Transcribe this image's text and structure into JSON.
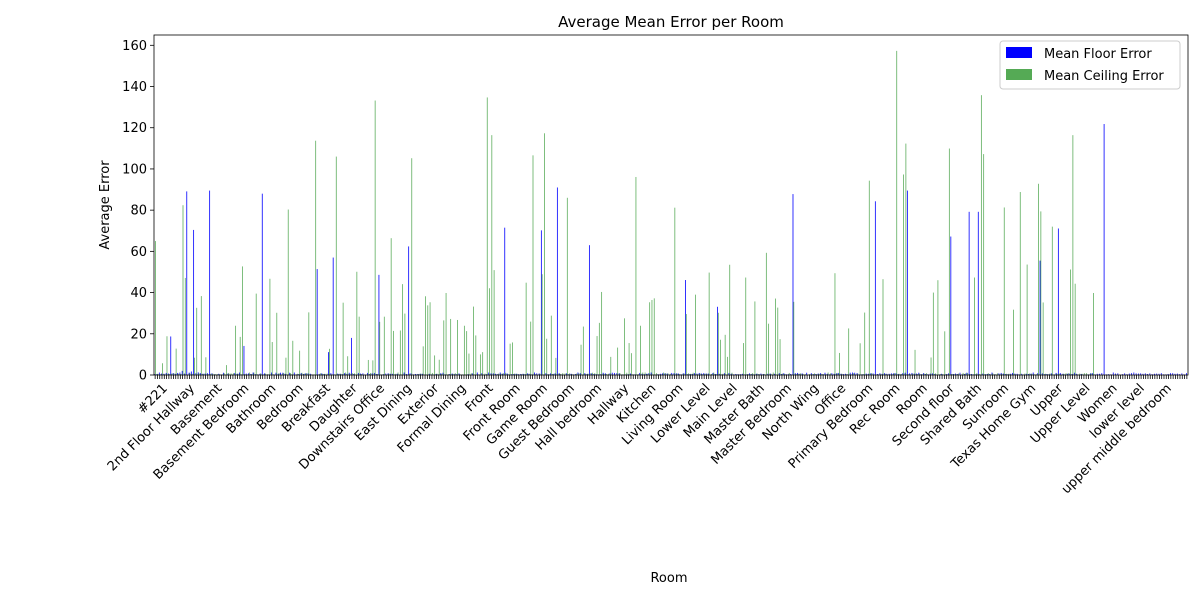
{
  "chart_data": {
    "type": "bar",
    "title": "Average Mean Error per Room",
    "xlabel": "Room",
    "ylabel": "Average Error",
    "ylim": [
      0,
      165
    ],
    "yticks": [
      0,
      20,
      40,
      60,
      80,
      100,
      120,
      140,
      160
    ],
    "grid": false,
    "legend_position": "top-right",
    "visible_categories": [
      "#221",
      "2nd Floor Hallway",
      "Basement",
      "Basement Bedroom",
      "Bathroom",
      "Bedroom",
      "Breakfast",
      "Daughter",
      "Downstairs Office",
      "East Dining",
      "Exterior",
      "Formal Dining",
      "Front",
      "Front Room",
      "Game Room",
      "Guest Bedroom",
      "Hall bedroom",
      "Hallway",
      "Kitchen",
      "Living Room",
      "Lower Level",
      "Main Level",
      "Master Bath",
      "Master Bedroom",
      "North Wing",
      "Office",
      "Primary Bedroom",
      "Rec Room",
      "Room",
      "Second floor",
      "Shared Bath",
      "Sunroom",
      "Texas Home Gym",
      "Upper",
      "Upper Level",
      "Women",
      "lower level",
      "upper middle bedroom"
    ],
    "series": [
      {
        "name": "Mean Floor Error",
        "color": "#0000ff",
        "values": [
          0.4,
          0.5,
          1.2,
          0.7,
          0.6,
          1,
          0.7,
          18.7,
          0.9,
          0.6,
          1,
          1.2,
          2,
          0.7,
          89.1,
          1.1,
          1.7,
          70.4,
          0.9,
          1.3,
          0.9,
          0.6,
          0.7,
          0.9,
          89.5,
          0.8,
          0.3,
          0.2,
          0.6,
          0.2,
          1.1,
          0.2,
          0.7,
          0.2,
          0.2,
          1,
          0.6,
          1.2,
          0.3,
          14.1,
          0.7,
          0.8,
          0.5,
          1.2,
          0.4,
          0.3,
          0.6,
          88,
          0.8,
          0.2,
          0.3,
          1.2,
          0.3,
          1.1,
          0.6,
          1.1,
          1.1,
          0.6,
          0.2,
          1.1,
          0.3,
          1.2,
          0.3,
          0.5,
          0.9,
          0.5,
          0.8,
          0.8,
          0.6,
          0.2,
          0.1,
          51.4,
          0.4,
          0.8,
          0.5,
          0.1,
          11.1,
          0.9,
          57,
          0.1,
          0.7,
          0.6,
          0.4,
          0.9,
          0.6,
          1.1,
          18,
          0.5,
          0.1,
          1,
          0.7,
          0.8,
          0.2,
          1,
          0.5,
          0.8,
          1,
          0.5,
          48.6,
          0.2,
          0.4,
          0.7,
          0.8,
          0.6,
          0.6,
          0.3,
          0.6,
          0.2,
          0.2,
          1.2,
          0.5,
          62.4,
          0.8,
          0.3,
          0.5,
          0.5,
          0.6,
          0.6,
          0.2,
          0.1,
          0.6,
          0.3,
          0.2,
          0.5,
          0.3,
          0.8,
          1.1,
          0.3,
          0.1,
          0.5,
          0.7,
          0.4,
          0.4,
          0.8,
          0.1,
          0.1,
          0.2,
          0.4,
          0.2,
          0.8,
          0.1,
          1.2,
          0.2,
          0.9,
          0.1,
          0.4,
          1.2,
          0.8,
          0.8,
          0.6,
          0.5,
          1.2,
          0.6,
          71.5,
          0.8,
          0.3,
          0.4,
          0.5,
          0.6,
          0.4,
          0.5,
          0.6,
          0.4,
          0.8,
          0.6,
          0.3,
          1.2,
          0.8,
          0.7,
          70.2,
          0.2,
          0.9,
          0.4,
          0.8,
          0.5,
          0.8,
          91,
          0.8,
          0.3,
          0.1,
          0.8,
          0.4,
          0.6,
          0.3,
          0.5,
          1.2,
          0.9,
          0.2,
          0.9,
          0.5,
          63,
          0.8,
          0.5,
          0.4,
          0.3,
          0.4,
          1.1,
          0.8,
          0.2,
          0.8,
          1.1,
          1,
          0.9,
          0.8,
          0.2,
          0.2,
          0.3,
          0.4,
          0.7,
          0.3,
          0.3,
          0.2,
          1,
          0.6,
          0.4,
          0.6,
          0.9,
          1.2,
          0.2,
          0.2,
          0.4,
          0.6,
          0.8,
          0.8,
          0.7,
          0.2,
          1,
          0.9,
          0.8,
          0.7,
          0.3,
          0.8,
          46.1,
          0.4,
          0.5,
          0.5,
          0.9,
          0.7,
          1,
          0.7,
          0.9,
          0.7,
          0.7,
          0.1,
          1,
          0.5,
          33.1,
          0.6,
          0.3,
          0.9,
          0.2,
          1,
          0.6,
          0.3,
          0.5,
          0.4,
          0.4,
          0.6,
          0.3,
          0.4,
          0.8,
          0.5,
          0.3,
          0.6,
          0.4,
          0.7,
          0.5,
          0.1,
          0.6,
          0.7,
          0.1,
          0.6,
          0.1,
          0.9,
          0.5,
          0.9,
          0.4,
          0.4,
          0.5,
          87.8,
          0.9,
          1,
          0.6,
          0.8,
          0.1,
          1.1,
          0.2,
          0.9,
          0.4,
          0.5,
          0.7,
          0.9,
          0.4,
          1.1,
          0.6,
          0.3,
          0.9,
          0.6,
          0.8,
          1,
          0.6,
          0.5,
          0.6,
          0.4,
          1.1,
          1.2,
          1.1,
          0.9,
          0.3,
          0.3,
          0.4,
          0.7,
          0.6,
          0.8,
          0.8,
          84.3,
          0.5,
          0.9,
          0.6,
          0.9,
          0.6,
          0.6,
          0.8,
          0.8,
          0.9,
          0.5,
          0.3,
          0.9,
          1.1,
          89.5,
          0.8,
          1,
          0.7,
          0.7,
          1.1,
          0.4,
          0.9,
          0.5,
          0.4,
          0.7,
          0.8,
          0.5,
          0.1,
          0.2,
          0.6,
          0.2,
          0.5,
          0.8,
          67.2,
          0.5,
          0.7,
          0.5,
          1.1,
          0.3,
          0.5,
          1.1,
          79.2,
          0.5,
          0.3,
          0.4,
          79.2,
          0.2,
          0.7,
          0.4,
          0.5,
          0.5,
          1.2,
          0.3,
          0.2,
          0.8,
          1,
          0.7,
          0.5,
          0.4,
          0.6,
          1,
          0.7,
          0.6,
          0.3,
          0.6,
          0.2,
          0.6,
          0.5,
          0.6,
          1.2,
          0.1,
          0.9,
          55.5,
          0.8,
          0.4,
          0.5,
          0.4,
          0.8,
          0.2,
          1,
          71.1,
          0.9,
          0.6,
          0.3,
          0.6,
          0.7,
          0.5,
          1.1,
          0.6,
          0.1,
          0.5,
          0.2,
          0.2,
          0.3,
          0.8,
          0.9,
          0.3,
          0.6,
          0.6,
          0.9,
          121.8,
          0.3,
          0.4,
          0.3,
          1.2,
          0.7,
          0.8,
          0.1,
          0.4,
          0.8,
          0.4,
          0.7,
          0.9,
          1.2,
          0.8,
          0.7,
          0.8,
          0.6,
          0.8,
          0.5,
          0.8,
          0.4,
          0.6,
          0.7,
          0.6,
          0.9,
          0.3,
          0.3,
          0.5,
          0.9,
          0.9,
          0.6,
          0.7,
          0.4,
          0.8,
          0.3,
          0.9
        ]
      },
      {
        "name": "Mean Ceiling Error",
        "color": "#55aa55",
        "values": [
          65,
          0.6,
          0.4,
          5.7,
          0.4,
          18.8,
          0.5,
          0.7,
          0.9,
          12.8,
          0.7,
          0.5,
          82.4,
          47.1,
          0.2,
          1.1,
          0.6,
          8.4,
          32.6,
          0.9,
          38.3,
          0.6,
          8.6,
          0.4,
          0.6,
          0.7,
          0.5,
          0.4,
          0.4,
          0.3,
          0.9,
          4.8,
          1,
          0.8,
          0.9,
          23.9,
          0.7,
          18.5,
          52.7,
          0.5,
          0.2,
          1.2,
          0.5,
          1.2,
          39.5,
          0.2,
          0.8,
          0.3,
          0.7,
          0.4,
          46.7,
          16,
          0.2,
          30.2,
          0.9,
          0.2,
          1,
          8.4,
          80.3,
          0.9,
          16.6,
          0.1,
          0.6,
          11.8,
          1.1,
          0.7,
          0.9,
          30.4,
          0.3,
          0.2,
          113.7,
          0.3,
          0.9,
          0.6,
          0.6,
          0.7,
          12.7,
          0.3,
          0.3,
          106,
          0.5,
          0.6,
          35.1,
          1.2,
          9.1,
          0.7,
          0.9,
          0.8,
          50.1,
          28.3,
          0.5,
          0.1,
          0.2,
          7.3,
          1,
          7.1,
          133.2,
          0.5,
          25.8,
          0.3,
          28.3,
          0.2,
          0.7,
          66.4,
          21.4,
          0.6,
          1.2,
          21.6,
          44.1,
          29.8,
          0.1,
          0.7,
          105.2,
          0.2,
          0.2,
          0.5,
          0.7,
          13.9,
          38.2,
          33.8,
          35.3,
          1,
          9.5,
          0.7,
          7.4,
          0.7,
          26.5,
          39.8,
          0.4,
          27.2,
          0.6,
          0.9,
          26.7,
          0.5,
          0.3,
          23.9,
          21.3,
          10.4,
          0.9,
          33.2,
          19.2,
          0.3,
          10,
          11.1,
          0.7,
          134.7,
          42.1,
          116.4,
          50.9,
          0.3,
          0.7,
          0.7,
          0.9,
          1.1,
          0.5,
          15.2,
          15.8,
          0.7,
          0.6,
          0.2,
          0.4,
          0.5,
          44.8,
          0.6,
          25.9,
          106.6,
          0.4,
          0.1,
          0.7,
          48.9,
          117.3,
          17.6,
          0.3,
          28.8,
          0.6,
          8.3,
          0.8,
          0.5,
          0.9,
          0.8,
          86,
          0.8,
          0.5,
          0.2,
          0.7,
          0.8,
          14.7,
          23.5,
          0.6,
          0.7,
          0.9,
          1.1,
          0.9,
          18.9,
          25.3,
          40.3,
          0.7,
          0.5,
          0.6,
          8.8,
          0.2,
          0.1,
          13.3,
          0.9,
          0.3,
          27.5,
          1.1,
          15.5,
          10.6,
          0.3,
          96.1,
          0.4,
          23.9,
          1.2,
          1.2,
          0.6,
          35.3,
          36.4,
          37.2,
          0.9,
          0.3,
          0.3,
          1.2,
          0.9,
          0.8,
          0.6,
          0.3,
          81.2,
          0.8,
          0.4,
          0.3,
          0.8,
          29.6,
          0.8,
          0.6,
          1.1,
          39,
          0.4,
          0.8,
          0.4,
          0.6,
          0.7,
          49.7,
          0.5,
          1.2,
          0.5,
          30.2,
          17.1,
          0.6,
          19.5,
          8.8,
          53.5,
          1.1,
          0.2,
          0.3,
          0.3,
          0.3,
          15.5,
          47.3,
          0.5,
          0.4,
          0.9,
          35.7,
          0.7,
          0.4,
          0.3,
          0.5,
          59.3,
          24.9,
          0.6,
          1.2,
          37.1,
          32.7,
          17.4,
          0.7,
          0.5,
          0.2,
          1,
          0.2,
          35.5,
          0.5,
          0.6,
          0.8,
          0.5,
          0.4,
          0.1,
          0.5,
          0.5,
          0.8,
          0.4,
          0.6,
          0.6,
          0.4,
          0.4,
          1.2,
          0.8,
          0.2,
          49.4,
          1,
          10.7,
          0.6,
          0.1,
          0.4,
          22.6,
          0.3,
          0.9,
          0.3,
          0.7,
          15.4,
          0.4,
          30.3,
          0.4,
          94.3,
          0.9,
          0.3,
          0.2,
          0.3,
          0.4,
          46.5,
          0.6,
          0.3,
          0.4,
          0.4,
          0.9,
          157.3,
          0.6,
          0.5,
          97.3,
          112.3,
          0.4,
          0.3,
          0.7,
          12.2,
          0.5,
          0.7,
          0.4,
          0.7,
          0.9,
          0.1,
          8.5,
          40,
          0.8,
          46,
          0.5,
          0.4,
          21.2,
          0.4,
          109.9,
          0.5,
          0.5,
          0.4,
          0.7,
          0.1,
          1,
          0.8,
          1,
          0.5,
          0.3,
          47.3,
          0.9,
          0.5,
          135.8,
          107.2,
          0.4,
          0.9,
          0.3,
          0.8,
          0.4,
          0.8,
          0.4,
          0.6,
          81.3,
          0.6,
          0.6,
          0.3,
          31.7,
          0.4,
          0.3,
          88.8,
          0.2,
          0.7,
          53.6,
          0.7,
          0.7,
          0.4,
          0.4,
          92.8,
          79.4,
          35.2,
          0.6,
          0.4,
          0.8,
          72,
          0.3,
          0.7,
          0.7,
          0.2,
          0.6,
          0.9,
          0.9,
          51.2,
          116.4,
          44.3,
          0.3,
          0.7,
          0.6,
          0.9,
          0.9,
          0.3,
          0.9,
          39.8
        ]
      }
    ]
  }
}
